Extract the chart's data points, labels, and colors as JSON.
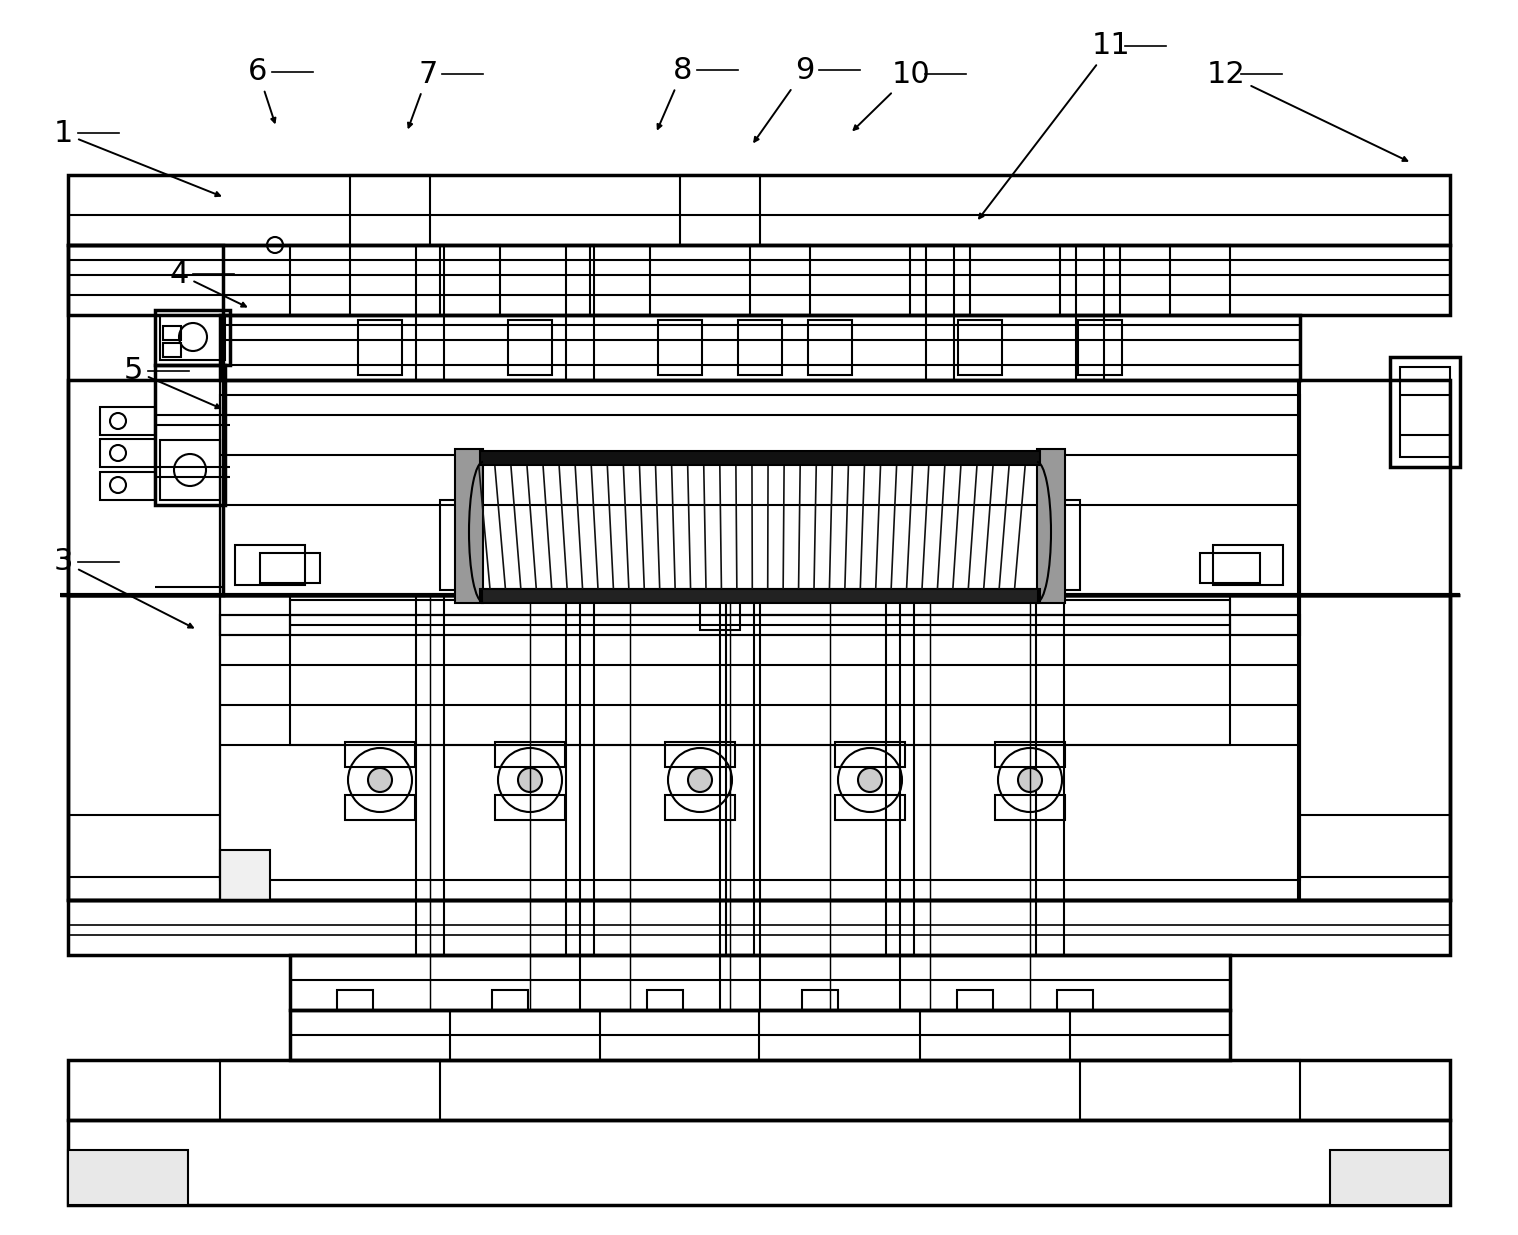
{
  "bg_color": "#ffffff",
  "lc": "#000000",
  "lw": 1.5,
  "tlw": 2.5,
  "font_size": 22,
  "label_arrow_map": {
    "1": {
      "lpos": [
        0.042,
        0.892
      ],
      "aend": [
        0.148,
        0.84
      ]
    },
    "3": {
      "lpos": [
        0.042,
        0.545
      ],
      "aend": [
        0.13,
        0.49
      ]
    },
    "4": {
      "lpos": [
        0.118,
        0.778
      ],
      "aend": [
        0.165,
        0.75
      ]
    },
    "5": {
      "lpos": [
        0.088,
        0.7
      ],
      "aend": [
        0.148,
        0.668
      ]
    },
    "6": {
      "lpos": [
        0.17,
        0.942
      ],
      "aend": [
        0.182,
        0.897
      ]
    },
    "7": {
      "lpos": [
        0.282,
        0.94
      ],
      "aend": [
        0.268,
        0.893
      ]
    },
    "8": {
      "lpos": [
        0.45,
        0.943
      ],
      "aend": [
        0.432,
        0.892
      ]
    },
    "9": {
      "lpos": [
        0.53,
        0.943
      ],
      "aend": [
        0.495,
        0.882
      ]
    },
    "10": {
      "lpos": [
        0.6,
        0.94
      ],
      "aend": [
        0.56,
        0.892
      ]
    },
    "11": {
      "lpos": [
        0.732,
        0.963
      ],
      "aend": [
        0.643,
        0.82
      ]
    },
    "12": {
      "lpos": [
        0.808,
        0.94
      ],
      "aend": [
        0.93,
        0.868
      ]
    }
  }
}
